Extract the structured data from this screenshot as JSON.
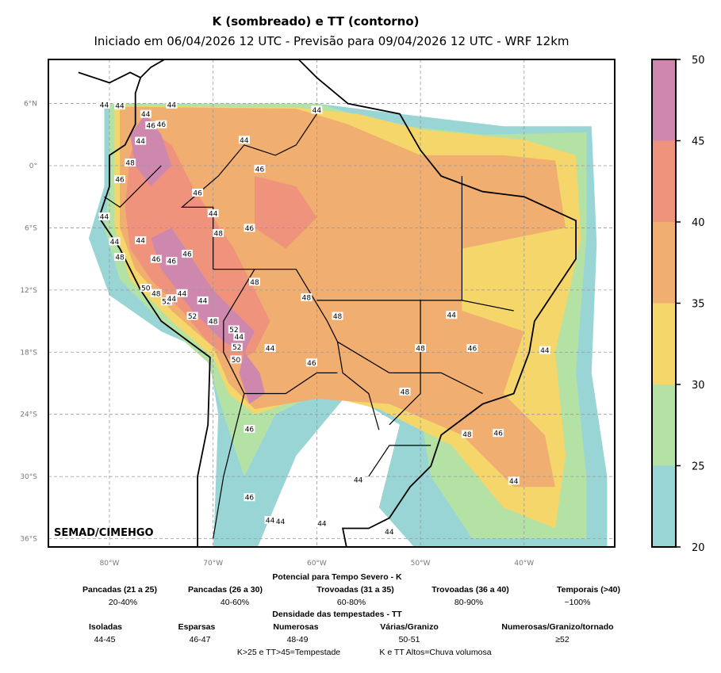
{
  "title": "K (sombreado) e TT (contorno)",
  "subtitle": "Iniciado em 06/04/2026 12 UTC - Previsão para 09/04/2026 12 UTC - WRF 12km",
  "watermark": "SEMAD/CIMEHGO",
  "lat_ticks": [
    "6°N",
    "0°",
    "6°S",
    "12°S",
    "18°S",
    "24°S",
    "30°S",
    "36°S"
  ],
  "lon_ticks": [
    "80°W",
    "70°W",
    "60°W",
    "50°W",
    "40°W"
  ],
  "colorbar": {
    "ticks": [
      "20",
      "25",
      "30",
      "35",
      "40",
      "45",
      "50"
    ],
    "colors": [
      "#9ad5d6",
      "#b3e2a4",
      "#f5d66a",
      "#f0ae70",
      "#f0937c",
      "#cf88ad"
    ]
  },
  "contour_labels": [
    "44",
    "44",
    "44",
    "44",
    "44",
    "46",
    "46",
    "44",
    "44",
    "48",
    "46",
    "46",
    "46",
    "44",
    "44",
    "46",
    "48",
    "46",
    "44",
    "44",
    "48",
    "46",
    "46",
    "50",
    "48",
    "52",
    "44",
    "44",
    "44",
    "52",
    "48",
    "48",
    "52",
    "44",
    "52",
    "50",
    "48",
    "44",
    "48",
    "46",
    "48",
    "44",
    "46",
    "44",
    "48",
    "48",
    "46",
    "44",
    "46",
    "46",
    "44",
    "44",
    "44",
    "44",
    "44"
  ],
  "legend": {
    "k_title": "Potencial para Tempo Severo - K",
    "k_items": [
      {
        "label": "Pancadas (21 a 25)",
        "value": "20-40%"
      },
      {
        "label": "Pancadas (26 a 30)",
        "value": "40-60%"
      },
      {
        "label": "Trovoadas (31 a 35)",
        "value": "60-80%"
      },
      {
        "label": "Trovoadas (36 a 40)",
        "value": "80-90%"
      },
      {
        "label": "Temporais (>40)",
        "value": "~100%"
      }
    ],
    "tt_title": "Densidade das tempestades - TT",
    "tt_items": [
      {
        "label": "Isoladas",
        "value": "44-45"
      },
      {
        "label": "Esparsas",
        "value": "46-47"
      },
      {
        "label": "Numerosas",
        "value": "48-49"
      },
      {
        "label": "Várias/Granizo",
        "value": "50-51"
      },
      {
        "label": "Numerosas/Granizo/tornado",
        "value": "≥52"
      }
    ],
    "note1": "K>25 e TT>45=Tempestade",
    "note2": "K e TT Altos=Chuva volumosa"
  }
}
